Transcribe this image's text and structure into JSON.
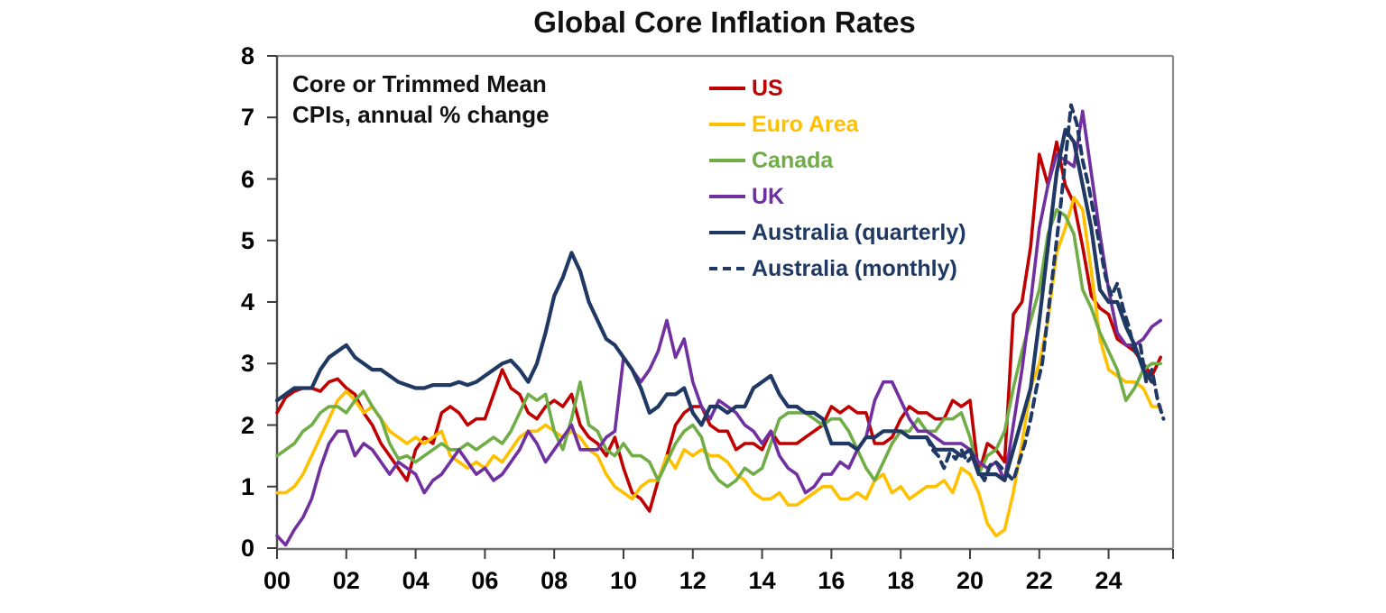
{
  "title": "Global Core Inflation Rates",
  "annotation": {
    "line1": "Core or Trimmed Mean",
    "line2": "CPIs, annual % change"
  },
  "chart_data": {
    "type": "line",
    "title": "Global Core Inflation Rates",
    "subtitle": "Core or Trimmed Mean CPIs, annual % change",
    "grid": false,
    "legend_position": "top-center-inside",
    "x_axis": {
      "range": [
        2000,
        2025.86
      ],
      "tick_years": [
        2000,
        2002,
        2004,
        2006,
        2008,
        2010,
        2012,
        2014,
        2016,
        2018,
        2020,
        2022,
        2024
      ],
      "tick_labels": [
        "00",
        "02",
        "04",
        "06",
        "08",
        "10",
        "12",
        "14",
        "16",
        "18",
        "20",
        "22",
        "24"
      ],
      "edge_tick": true
    },
    "y_axis": {
      "range": [
        0,
        8
      ],
      "ticks": [
        0,
        1,
        2,
        3,
        4,
        5,
        6,
        7,
        8
      ],
      "label": "annual % change"
    },
    "series": [
      {
        "name": "US",
        "color": "#C00000",
        "dash": false,
        "width": 3.6,
        "start": 2000.0,
        "step": 0.25,
        "values": [
          2.2,
          2.45,
          2.55,
          2.6,
          2.6,
          2.55,
          2.7,
          2.75,
          2.6,
          2.5,
          2.2,
          2.0,
          1.7,
          1.5,
          1.3,
          1.1,
          1.6,
          1.8,
          1.7,
          2.2,
          2.3,
          2.2,
          2.0,
          2.1,
          2.1,
          2.5,
          2.9,
          2.6,
          2.5,
          2.2,
          2.1,
          2.3,
          2.4,
          2.3,
          2.5,
          2.0,
          1.8,
          1.7,
          1.5,
          1.8,
          1.3,
          0.9,
          0.8,
          0.6,
          1.1,
          1.5,
          2.0,
          2.2,
          2.3,
          2.3,
          2.0,
          1.9,
          1.9,
          1.6,
          1.7,
          1.7,
          1.6,
          1.9,
          1.7,
          1.7,
          1.7,
          1.8,
          1.9,
          2.0,
          2.3,
          2.2,
          2.3,
          2.2,
          2.2,
          1.7,
          1.7,
          1.8,
          2.1,
          2.3,
          2.2,
          2.2,
          2.1,
          2.1,
          2.4,
          2.3,
          2.4,
          1.2,
          1.7,
          1.6,
          1.4,
          3.8,
          4.0,
          4.9,
          6.4,
          5.9,
          6.6,
          5.9,
          5.6,
          4.9,
          4.1,
          3.9,
          3.8,
          3.4,
          3.3,
          3.2,
          3.0,
          2.8,
          3.1
        ]
      },
      {
        "name": "Euro Area",
        "color": "#FFC000",
        "dash": false,
        "width": 3.6,
        "start": 2000.0,
        "step": 0.25,
        "values": [
          0.9,
          0.9,
          1.0,
          1.2,
          1.5,
          1.8,
          2.1,
          2.4,
          2.55,
          2.4,
          2.2,
          2.3,
          2.1,
          1.9,
          1.8,
          1.7,
          1.8,
          1.7,
          1.8,
          1.9,
          1.5,
          1.4,
          1.3,
          1.4,
          1.3,
          1.5,
          1.4,
          1.6,
          1.8,
          1.9,
          1.9,
          2.0,
          1.9,
          1.8,
          1.9,
          1.8,
          1.6,
          1.5,
          1.2,
          1.0,
          0.9,
          0.8,
          1.0,
          1.1,
          1.1,
          1.5,
          1.3,
          1.6,
          1.5,
          1.6,
          1.5,
          1.5,
          1.4,
          1.2,
          1.1,
          0.9,
          0.8,
          0.8,
          0.9,
          0.7,
          0.7,
          0.8,
          0.9,
          1.0,
          1.0,
          0.8,
          0.8,
          0.9,
          0.8,
          1.1,
          1.2,
          0.9,
          1.0,
          0.8,
          0.9,
          1.0,
          1.0,
          1.1,
          0.9,
          1.3,
          1.2,
          0.9,
          0.4,
          0.2,
          0.3,
          0.9,
          1.7,
          2.6,
          3.0,
          3.7,
          4.8,
          5.2,
          5.7,
          5.5,
          4.5,
          3.4,
          2.9,
          2.8,
          2.7,
          2.7,
          2.6,
          2.3,
          2.3
        ]
      },
      {
        "name": "Canada",
        "color": "#70AD47",
        "dash": false,
        "width": 3.6,
        "start": 2000.0,
        "step": 0.25,
        "values": [
          1.5,
          1.6,
          1.7,
          1.9,
          2.0,
          2.2,
          2.3,
          2.3,
          2.2,
          2.4,
          2.55,
          2.3,
          2.1,
          1.7,
          1.45,
          1.5,
          1.4,
          1.5,
          1.6,
          1.7,
          1.6,
          1.6,
          1.7,
          1.6,
          1.7,
          1.8,
          1.7,
          1.9,
          2.2,
          2.5,
          2.4,
          2.5,
          1.9,
          1.6,
          2.1,
          2.7,
          2.0,
          1.9,
          1.6,
          1.5,
          1.7,
          1.5,
          1.5,
          1.4,
          1.1,
          1.4,
          1.7,
          1.9,
          2.0,
          1.8,
          1.3,
          1.1,
          1.0,
          1.1,
          1.3,
          1.2,
          1.3,
          1.7,
          2.1,
          2.2,
          2.2,
          2.2,
          2.1,
          2.0,
          2.1,
          2.1,
          1.9,
          1.6,
          1.3,
          1.1,
          1.4,
          1.7,
          1.9,
          1.9,
          2.1,
          1.9,
          1.9,
          2.1,
          2.1,
          2.2,
          1.8,
          1.2,
          1.5,
          1.6,
          1.9,
          2.6,
          3.2,
          3.7,
          4.2,
          5.1,
          5.5,
          5.4,
          5.1,
          4.2,
          3.9,
          3.5,
          3.2,
          2.9,
          2.4,
          2.6,
          2.9,
          3.0,
          3.0
        ]
      },
      {
        "name": "UK",
        "color": "#7030A0",
        "dash": false,
        "width": 3.6,
        "start": 2000.0,
        "step": 0.25,
        "values": [
          0.2,
          0.05,
          0.3,
          0.5,
          0.8,
          1.3,
          1.7,
          1.9,
          1.9,
          1.5,
          1.7,
          1.6,
          1.4,
          1.2,
          1.4,
          1.3,
          1.2,
          0.9,
          1.1,
          1.2,
          1.4,
          1.6,
          1.4,
          1.2,
          1.3,
          1.1,
          1.2,
          1.4,
          1.6,
          1.9,
          1.7,
          1.4,
          1.6,
          1.8,
          2.0,
          1.6,
          1.6,
          1.6,
          1.8,
          1.9,
          3.1,
          2.9,
          2.7,
          2.9,
          3.2,
          3.7,
          3.1,
          3.4,
          2.7,
          2.3,
          2.1,
          2.4,
          2.3,
          2.2,
          2.0,
          1.9,
          1.7,
          1.9,
          1.5,
          1.3,
          1.2,
          0.9,
          1.0,
          1.2,
          1.2,
          1.4,
          1.3,
          1.6,
          1.8,
          2.4,
          2.7,
          2.7,
          2.4,
          2.1,
          1.9,
          1.9,
          1.8,
          1.7,
          1.7,
          1.7,
          1.6,
          1.4,
          1.3,
          1.4,
          1.1,
          2.0,
          2.9,
          4.0,
          5.2,
          5.9,
          6.4,
          6.3,
          6.2,
          7.1,
          6.1,
          5.1,
          4.2,
          3.5,
          3.3,
          3.3,
          3.4,
          3.6,
          3.7
        ]
      },
      {
        "name": "Australia (quarterly)",
        "color": "#1F3864",
        "dash": false,
        "width": 4.2,
        "start": 2000.0,
        "step": 0.25,
        "values": [
          2.4,
          2.5,
          2.6,
          2.6,
          2.6,
          2.9,
          3.1,
          3.2,
          3.3,
          3.1,
          3.0,
          2.9,
          2.9,
          2.8,
          2.7,
          2.65,
          2.6,
          2.6,
          2.65,
          2.65,
          2.65,
          2.7,
          2.65,
          2.7,
          2.8,
          2.9,
          3.0,
          3.05,
          2.9,
          2.7,
          3.0,
          3.5,
          4.1,
          4.4,
          4.8,
          4.5,
          4.0,
          3.7,
          3.4,
          3.3,
          3.1,
          2.9,
          2.6,
          2.2,
          2.3,
          2.5,
          2.5,
          2.6,
          2.2,
          2.0,
          2.3,
          2.3,
          2.2,
          2.3,
          2.3,
          2.6,
          2.7,
          2.8,
          2.5,
          2.3,
          2.3,
          2.2,
          2.2,
          2.1,
          1.7,
          1.7,
          1.7,
          1.6,
          1.8,
          1.8,
          1.9,
          1.9,
          1.9,
          1.8,
          1.8,
          1.8,
          1.6,
          1.6,
          1.6,
          1.5,
          1.6,
          1.2,
          1.2,
          1.2,
          1.1,
          1.6,
          2.1,
          2.6,
          3.7,
          4.9,
          6.1,
          6.8,
          6.6,
          5.9,
          5.2,
          4.2,
          4.0,
          4.0,
          3.6,
          3.3,
          2.9,
          2.7
        ]
      },
      {
        "name": "Australia (monthly)",
        "color": "#1F3864",
        "dash": true,
        "width": 4.0,
        "start": 2018.75,
        "step": 0.166667,
        "values": [
          1.8,
          1.6,
          1.5,
          1.3,
          1.55,
          1.45,
          1.6,
          1.4,
          1.5,
          1.25,
          1.1,
          1.35,
          1.4,
          1.3,
          1.2,
          1.1,
          1.4,
          1.7,
          2.1,
          2.6,
          3.0,
          3.8,
          4.6,
          5.4,
          6.3,
          7.2,
          6.9,
          6.3,
          5.9,
          5.4,
          4.9,
          4.4,
          4.1,
          4.3,
          3.9,
          3.6,
          3.2,
          3.3,
          2.7,
          2.9,
          2.4,
          2.1
        ]
      }
    ]
  },
  "axis_colors": {
    "top": "#8a8a8a",
    "right": "#8a8a8a",
    "left": "#4a4a4a",
    "bottom": "#6e6e6e",
    "tick": "#3c3c3c"
  }
}
